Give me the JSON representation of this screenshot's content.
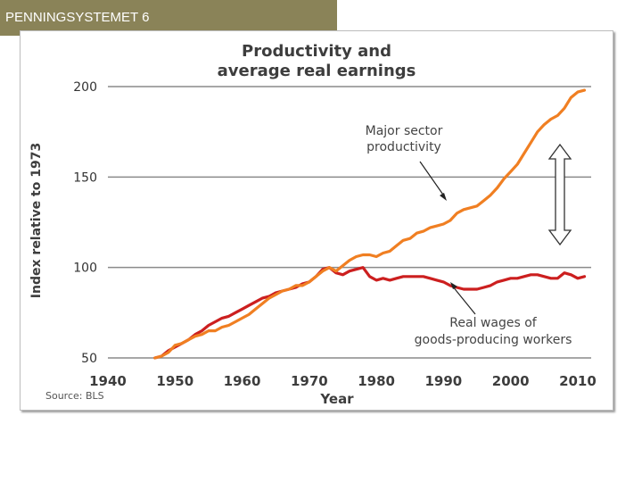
{
  "slide": {
    "title": "PENNINGSYSTEMET 6"
  },
  "chart_data": {
    "type": "line",
    "title": "Productivity and average real earnings",
    "title_lines": [
      "Productivity and",
      "average real earnings"
    ],
    "xlabel": "Year",
    "ylabel": "Index relative to 1973",
    "xlim": [
      1940,
      2012
    ],
    "ylim": [
      50,
      200
    ],
    "xticks": [
      "1940",
      "1950",
      "1960",
      "1970",
      "1980",
      "1990",
      "2000",
      "2010"
    ],
    "yticks": [
      "50",
      "100",
      "150",
      "200"
    ],
    "grid": "horizontal",
    "source": "Source: BLS",
    "series": [
      {
        "name": "Major sector productivity",
        "label_lines": [
          "Major sector",
          "productivity"
        ],
        "color": "#f07f22",
        "x": [
          1947,
          1948,
          1949,
          1950,
          1951,
          1952,
          1953,
          1954,
          1955,
          1956,
          1957,
          1958,
          1959,
          1960,
          1961,
          1962,
          1963,
          1964,
          1965,
          1966,
          1967,
          1968,
          1969,
          1970,
          1971,
          1972,
          1973,
          1974,
          1975,
          1976,
          1977,
          1978,
          1979,
          1980,
          1981,
          1982,
          1983,
          1984,
          1985,
          1986,
          1987,
          1988,
          1989,
          1990,
          1991,
          1992,
          1993,
          1994,
          1995,
          1996,
          1997,
          1998,
          1999,
          2000,
          2001,
          2002,
          2003,
          2004,
          2005,
          2006,
          2007,
          2008,
          2009,
          2010,
          2011
        ],
        "values": [
          50,
          51,
          53,
          57,
          58,
          60,
          62,
          63,
          65,
          65,
          67,
          68,
          70,
          72,
          74,
          77,
          80,
          83,
          85,
          87,
          88,
          90,
          90,
          92,
          95,
          98,
          100,
          98,
          101,
          104,
          106,
          107,
          107,
          106,
          108,
          109,
          112,
          115,
          116,
          119,
          120,
          122,
          123,
          124,
          126,
          130,
          132,
          133,
          134,
          137,
          140,
          144,
          149,
          153,
          157,
          163,
          169,
          175,
          179,
          182,
          184,
          188,
          194,
          197,
          198
        ]
      },
      {
        "name": "Real wages of goods-producing workers",
        "label_lines": [
          "Real wages of",
          "goods-producing workers"
        ],
        "color": "#cc1f1f",
        "x": [
          1947,
          1948,
          1949,
          1950,
          1951,
          1952,
          1953,
          1954,
          1955,
          1956,
          1957,
          1958,
          1959,
          1960,
          1961,
          1962,
          1963,
          1964,
          1965,
          1966,
          1967,
          1968,
          1969,
          1970,
          1971,
          1972,
          1973,
          1974,
          1975,
          1976,
          1977,
          1978,
          1979,
          1980,
          1981,
          1982,
          1983,
          1984,
          1985,
          1986,
          1987,
          1988,
          1989,
          1990,
          1991,
          1992,
          1993,
          1994,
          1995,
          1996,
          1997,
          1998,
          1999,
          2000,
          2001,
          2002,
          2003,
          2004,
          2005,
          2006,
          2007,
          2008,
          2009,
          2010,
          2011
        ],
        "values": [
          50,
          51,
          54,
          56,
          58,
          60,
          63,
          65,
          68,
          70,
          72,
          73,
          75,
          77,
          79,
          81,
          83,
          84,
          86,
          87,
          88,
          89,
          91,
          92,
          95,
          99,
          100,
          97,
          96,
          98,
          99,
          100,
          95,
          93,
          94,
          93,
          94,
          95,
          95,
          95,
          95,
          94,
          93,
          92,
          90,
          89,
          88,
          88,
          88,
          89,
          90,
          92,
          93,
          94,
          94,
          95,
          96,
          96,
          95,
          94,
          94,
          97,
          96,
          94,
          95
        ]
      }
    ],
    "annotations": [
      "Major sector productivity",
      "Real wages of goods-producing workers"
    ]
  }
}
